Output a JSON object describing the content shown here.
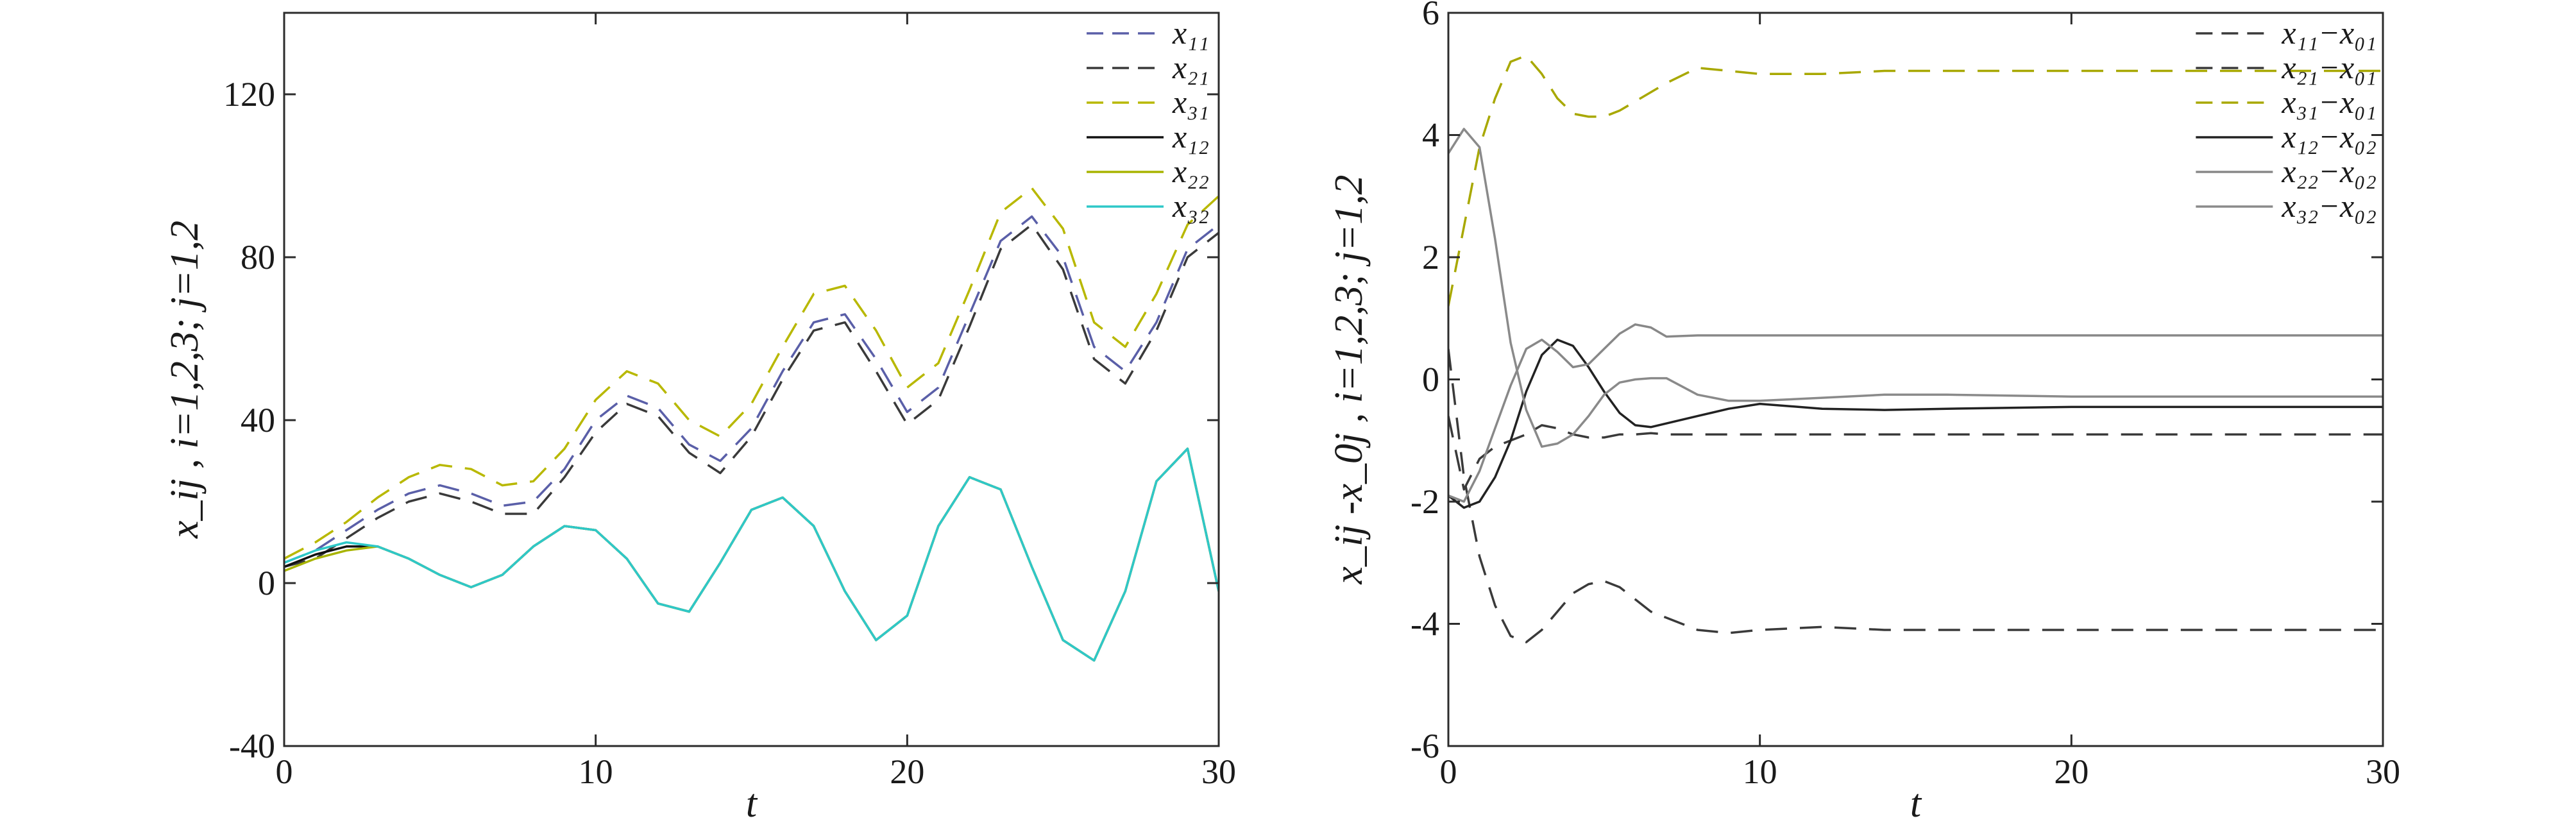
{
  "chart_data": [
    {
      "type": "line",
      "xlabel": "t",
      "ylabel": "x_ij , i=1,2,3; j=1,2",
      "xlim": [
        0,
        30
      ],
      "ylim": [
        -40,
        140
      ],
      "xticks": [
        "0",
        "10",
        "20",
        "30"
      ],
      "yticks": [
        "-40",
        "0",
        "40",
        "80",
        "120"
      ],
      "ytick_values": [
        -40,
        0,
        40,
        80,
        120
      ],
      "xtick_values": [
        0,
        10,
        20,
        30
      ],
      "grid": false,
      "legend_position": "top-right",
      "x": [
        0,
        1,
        2,
        3,
        4,
        5,
        6,
        7,
        8,
        9,
        10,
        11,
        12,
        13,
        14,
        15,
        16,
        17,
        18,
        19,
        20,
        21,
        22,
        23,
        24,
        25,
        26,
        27,
        28,
        29,
        30
      ],
      "series": [
        {
          "name": "x11",
          "legend": "x₁₁",
          "color": "#5a5fa8",
          "dash": "dash",
          "values": [
            5,
            8,
            13,
            18,
            22,
            24,
            22,
            19,
            20,
            28,
            40,
            46,
            43,
            34,
            30,
            38,
            52,
            64,
            66,
            55,
            42,
            48,
            66,
            84,
            90,
            80,
            58,
            52,
            64,
            82,
            88
          ]
        },
        {
          "name": "x21",
          "legend": "x₂₁",
          "color": "#3a3a3a",
          "dash": "dash",
          "values": [
            4,
            6,
            11,
            16,
            20,
            22,
            20,
            17,
            17,
            26,
            37,
            44,
            41,
            32,
            27,
            36,
            50,
            62,
            64,
            52,
            39,
            45,
            63,
            82,
            88,
            77,
            55,
            49,
            62,
            80,
            86
          ]
        },
        {
          "name": "x31",
          "legend": "x₃₁",
          "color": "#b8b800",
          "dash": "dash",
          "values": [
            6,
            10,
            15,
            21,
            26,
            29,
            28,
            24,
            25,
            33,
            45,
            52,
            49,
            40,
            36,
            44,
            58,
            71,
            73,
            62,
            48,
            54,
            72,
            91,
            97,
            87,
            64,
            58,
            71,
            88,
            95
          ]
        },
        {
          "name": "x12",
          "legend": "x₁₂",
          "color": "#111111",
          "dash": "solid",
          "values": [
            4,
            7,
            9,
            9,
            6,
            2,
            -1,
            2,
            9,
            14,
            13,
            6,
            -5,
            -7,
            5,
            18,
            21,
            14,
            -2,
            -14,
            -8,
            14,
            26,
            23,
            4,
            -14,
            -19,
            -2,
            25,
            33,
            -2
          ]
        },
        {
          "name": "x22",
          "legend": "x₂₂",
          "color": "#a8b400",
          "dash": "solid",
          "values": [
            3,
            6,
            8,
            9,
            6,
            2,
            -1,
            2,
            9,
            14,
            13,
            6,
            -5,
            -7,
            5,
            18,
            21,
            14,
            -2,
            -14,
            -8,
            14,
            26,
            23,
            4,
            -14,
            -19,
            -2,
            25,
            33,
            -2
          ]
        },
        {
          "name": "x32",
          "legend": "x₃₂",
          "color": "#2ec8c8",
          "dash": "solid",
          "values": [
            5,
            8,
            10,
            9,
            6,
            2,
            -1,
            2,
            9,
            14,
            13,
            6,
            -5,
            -7,
            5,
            18,
            21,
            14,
            -2,
            -14,
            -8,
            14,
            26,
            23,
            4,
            -14,
            -19,
            -2,
            25,
            33,
            -2
          ]
        }
      ]
    },
    {
      "type": "line",
      "xlabel": "t",
      "ylabel": "x_ij -x_0j , i=1,2,3; j=1,2",
      "xlim": [
        0,
        30
      ],
      "ylim": [
        -6,
        6
      ],
      "xticks": [
        "0",
        "10",
        "20",
        "30"
      ],
      "yticks": [
        "-6",
        "-4",
        "-2",
        "0",
        "2",
        "4",
        "6"
      ],
      "ytick_values": [
        -6,
        -4,
        -2,
        0,
        2,
        4,
        6
      ],
      "xtick_values": [
        0,
        10,
        20,
        30
      ],
      "grid": false,
      "legend_position": "top-right",
      "x": [
        0,
        0.5,
        1,
        1.5,
        2,
        2.5,
        3,
        3.5,
        4,
        4.5,
        5,
        5.5,
        6,
        6.5,
        7,
        8,
        9,
        10,
        12,
        14,
        16,
        20,
        25,
        30
      ],
      "series": [
        {
          "name": "x11-x01",
          "legend": "x₁₁−x₀₁",
          "color": "#3a3a3a",
          "dash": "dash",
          "values": [
            0.5,
            -1.6,
            -2.9,
            -3.7,
            -4.2,
            -4.3,
            -4.1,
            -3.8,
            -3.5,
            -3.35,
            -3.3,
            -3.4,
            -3.6,
            -3.8,
            -3.9,
            -4.1,
            -4.15,
            -4.1,
            -4.05,
            -4.1,
            -4.1,
            -4.1,
            -4.1,
            -4.1
          ]
        },
        {
          "name": "x21-x01",
          "legend": "x₂₁−x₀₁",
          "color": "#3a3a3a",
          "dash": "dash",
          "values": [
            -0.6,
            -1.8,
            -1.3,
            -1.1,
            -1.0,
            -0.9,
            -0.75,
            -0.8,
            -0.9,
            -0.95,
            -0.95,
            -0.9,
            -0.9,
            -0.88,
            -0.9,
            -0.9,
            -0.9,
            -0.9,
            -0.9,
            -0.9,
            -0.9,
            -0.9,
            -0.9,
            -0.9
          ]
        },
        {
          "name": "x31-x01",
          "legend": "x₃₁−x₀₁",
          "color": "#a8a800",
          "dash": "dash",
          "values": [
            1.2,
            2.5,
            3.8,
            4.6,
            5.2,
            5.3,
            5.0,
            4.6,
            4.35,
            4.3,
            4.3,
            4.4,
            4.55,
            4.7,
            4.85,
            5.1,
            5.05,
            5.0,
            5.0,
            5.05,
            5.05,
            5.05,
            5.05,
            5.05
          ]
        },
        {
          "name": "x12-x02",
          "legend": "x₁₂−x₀₂",
          "color": "#222222",
          "dash": "solid",
          "values": [
            -1.9,
            -2.1,
            -2.0,
            -1.6,
            -1.0,
            -0.2,
            0.4,
            0.65,
            0.55,
            0.2,
            -0.2,
            -0.55,
            -0.75,
            -0.78,
            -0.72,
            -0.6,
            -0.48,
            -0.4,
            -0.48,
            -0.5,
            -0.48,
            -0.45,
            -0.45,
            -0.45
          ]
        },
        {
          "name": "x22-x02",
          "legend": "x₂₂−x₀₂",
          "color": "#888888",
          "dash": "solid",
          "values": [
            -1.9,
            -2.0,
            -1.5,
            -0.8,
            -0.1,
            0.5,
            0.65,
            0.45,
            0.2,
            0.25,
            0.5,
            0.75,
            0.9,
            0.85,
            0.7,
            0.72,
            0.72,
            0.72,
            0.72,
            0.72,
            0.72,
            0.72,
            0.72,
            0.72
          ]
        },
        {
          "name": "x32-x02",
          "legend": "x₃₂−x₀₂",
          "color": "#8a8a8a",
          "dash": "solid",
          "values": [
            3.7,
            4.1,
            3.8,
            2.3,
            0.6,
            -0.5,
            -1.1,
            -1.05,
            -0.9,
            -0.6,
            -0.25,
            -0.05,
            0.0,
            0.02,
            0.02,
            -0.25,
            -0.35,
            -0.35,
            -0.3,
            -0.25,
            -0.25,
            -0.28,
            -0.28,
            -0.28
          ]
        }
      ]
    }
  ]
}
